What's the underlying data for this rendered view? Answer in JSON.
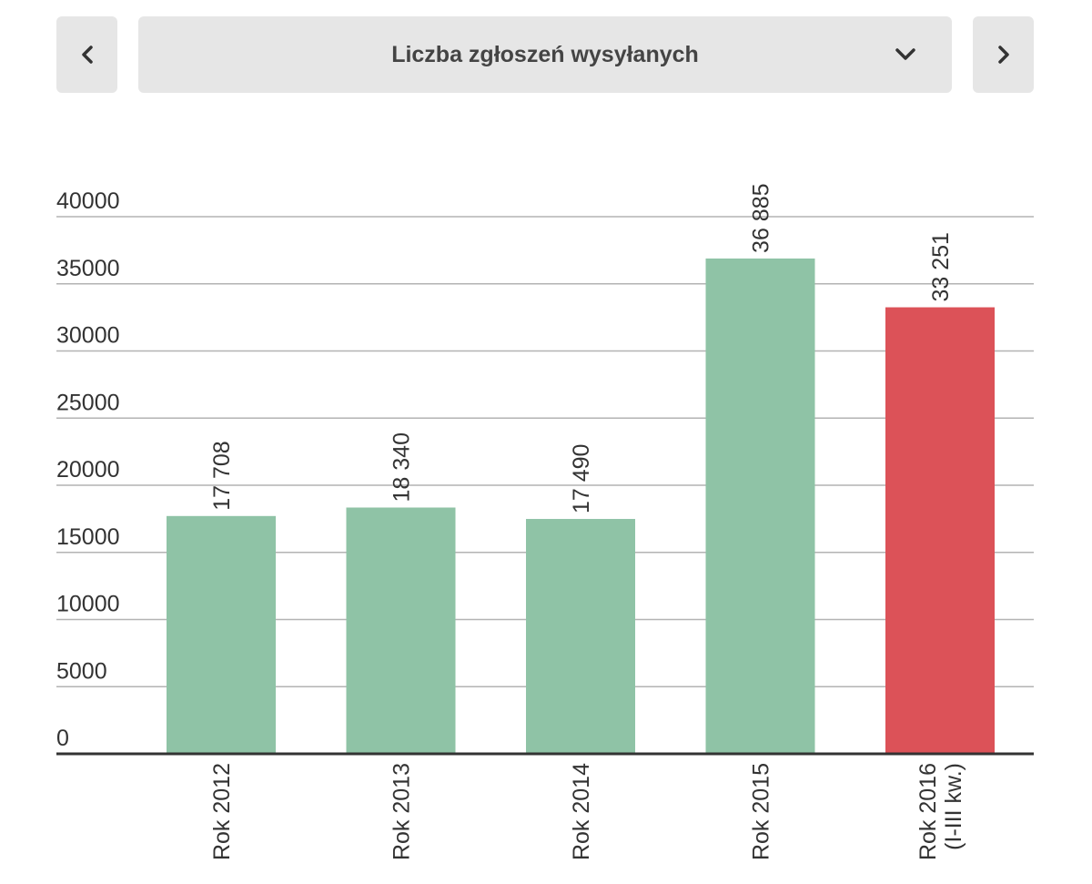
{
  "selector": {
    "title": "Liczba zgłoszeń wysyłanych",
    "prev_icon": "chevron-left-icon",
    "next_icon": "chevron-right-icon",
    "dropdown_icon": "chevron-down-icon"
  },
  "chart_data": {
    "type": "bar",
    "title": "",
    "xlabel": "",
    "ylabel": "",
    "categories": [
      "Rok 2012",
      "Rok 2013",
      "Rok 2014",
      "Rok 2015",
      "Rok 2016 (I-III kw.)"
    ],
    "values": [
      17708,
      18340,
      17490,
      36885,
      33251
    ],
    "value_labels": [
      "17 708",
      "18 340",
      "17 490",
      "36 885",
      "33 251"
    ],
    "yticks": [
      0,
      5000,
      10000,
      15000,
      20000,
      25000,
      30000,
      35000,
      40000
    ],
    "ylim": [
      0,
      40000
    ],
    "grid": true,
    "legend": "none",
    "colors": {
      "bar": "#8fc3a6",
      "highlight": "#dc5258",
      "grid": "#b3b3b3",
      "axis": "#333333"
    },
    "highlight_index": 4
  }
}
